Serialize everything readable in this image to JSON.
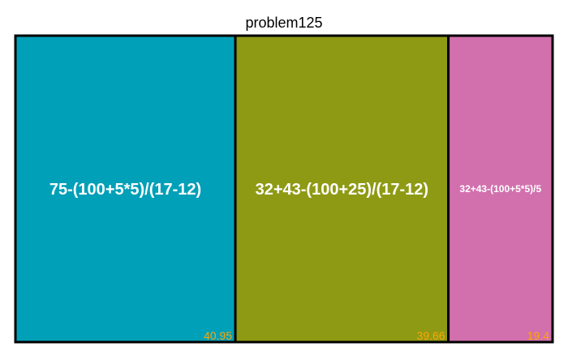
{
  "chart_data": {
    "type": "treemap",
    "title": "problem125",
    "items": [
      {
        "label": "75-(100+5*5)/(17-12)",
        "value": 40.95,
        "value_label": "40.95",
        "color": "#00A0B8"
      },
      {
        "label": "32+43-(100+25)/(17-12)",
        "value": 39.66,
        "value_label": "39.66",
        "color": "#8E9A14"
      },
      {
        "label": "32+43-(100+5*5)/5",
        "value": 19.4,
        "value_label": "19.4",
        "color": "#D270AE"
      }
    ],
    "label_color": "#FFFFFF",
    "value_label_color": "#FFA500",
    "border_color": "#000000"
  }
}
